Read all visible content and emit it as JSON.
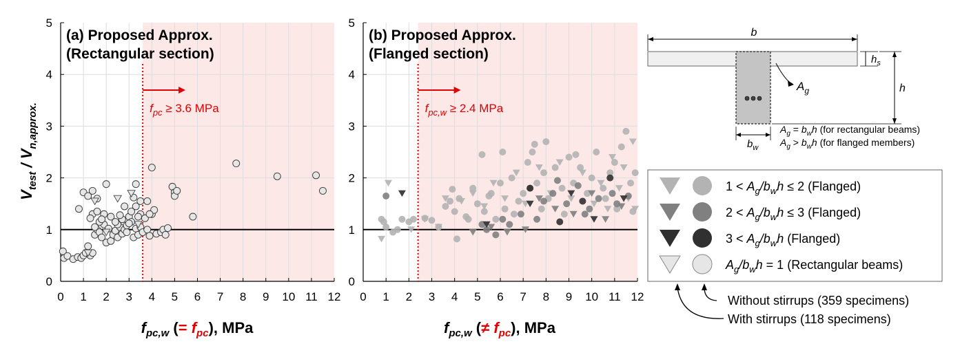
{
  "chart_data": [
    {
      "type": "scatter",
      "title_line1": "(a) Proposed Approx.",
      "title_line2": "(Rectangular section)",
      "xlim": [
        0,
        12
      ],
      "ylim": [
        0,
        5
      ],
      "xticks": [
        0,
        1,
        2,
        3,
        4,
        5,
        6,
        7,
        8,
        9,
        10,
        11,
        12
      ],
      "yticks": [
        0,
        1,
        2,
        3,
        4,
        5
      ],
      "ylabel": "Vtest / Vn,approx.",
      "xlabel_prefix": "fpc,w (",
      "xlabel_red": "= fpc",
      "xlabel_suffix": "), MPa",
      "threshold": {
        "x": 3.6,
        "label": "fpc ≥ 3.6 MPa"
      },
      "reference_line_y": 1,
      "series": [
        {
          "name": "Ag/bwh = 1 (Rectangular beams)",
          "marker": "circle",
          "color": "#e6e6e6",
          "points": [
            [
              0.1,
              0.58
            ],
            [
              0.15,
              0.45
            ],
            [
              0.3,
              0.49
            ],
            [
              0.55,
              0.43
            ],
            [
              0.75,
              0.47
            ],
            [
              0.9,
              0.45
            ],
            [
              1.0,
              0.5
            ],
            [
              1.1,
              0.55
            ],
            [
              1.2,
              0.68
            ],
            [
              1.3,
              0.5
            ],
            [
              1.4,
              0.55
            ],
            [
              1.5,
              0.9
            ],
            [
              1.6,
              1.0
            ],
            [
              1.7,
              0.95
            ],
            [
              1.8,
              0.85
            ],
            [
              1.9,
              1.1
            ],
            [
              2.0,
              0.75
            ],
            [
              2.1,
              1.02
            ],
            [
              2.2,
              0.78
            ],
            [
              2.3,
              0.9
            ],
            [
              2.4,
              0.98
            ],
            [
              2.5,
              0.85
            ],
            [
              2.6,
              1.05
            ],
            [
              2.7,
              0.92
            ],
            [
              2.8,
              1.0
            ],
            [
              2.9,
              0.95
            ],
            [
              3.0,
              1.25
            ],
            [
              3.1,
              1.15
            ],
            [
              3.2,
              0.85
            ],
            [
              3.3,
              1.02
            ],
            [
              3.4,
              0.9
            ],
            [
              3.5,
              1.05
            ],
            [
              3.6,
              0.95
            ],
            [
              1.5,
              1.05
            ],
            [
              1.7,
              1.15
            ],
            [
              1.9,
              1.3
            ],
            [
              2.2,
              1.25
            ],
            [
              2.5,
              1.1
            ],
            [
              2.7,
              1.2
            ],
            [
              2.9,
              1.08
            ],
            [
              3.1,
              1.35
            ],
            [
              3.2,
              1.62
            ],
            [
              3.3,
              1.45
            ],
            [
              3.5,
              1.3
            ],
            [
              0.8,
              1.4
            ],
            [
              1.0,
              1.72
            ],
            [
              1.2,
              1.65
            ],
            [
              1.4,
              1.75
            ],
            [
              1.6,
              1.6
            ],
            [
              2.0,
              1.88
            ],
            [
              2.8,
              1.45
            ],
            [
              3.3,
              1.88
            ],
            [
              3.5,
              1.55
            ],
            [
              1.4,
              1.3
            ],
            [
              1.3,
              1.22
            ],
            [
              1.6,
              1.35
            ],
            [
              1.8,
              1.2
            ],
            [
              2.4,
              1.15
            ],
            [
              2.6,
              1.28
            ],
            [
              3.0,
              1.12
            ],
            [
              3.4,
              1.25
            ],
            [
              3.7,
              1.22
            ],
            [
              3.8,
              1.0
            ],
            [
              3.9,
              0.88
            ],
            [
              4.0,
              1.3
            ],
            [
              4.1,
              1.38
            ],
            [
              4.2,
              0.92
            ],
            [
              4.4,
              0.95
            ],
            [
              4.5,
              1.0
            ],
            [
              4.6,
              0.9
            ],
            [
              4.7,
              1.03
            ],
            [
              3.9,
              1.3
            ],
            [
              4.0,
              2.2
            ],
            [
              3.8,
              1.55
            ],
            [
              4.9,
              1.83
            ],
            [
              5.0,
              1.72
            ],
            [
              5.0,
              1.65
            ],
            [
              5.1,
              1.75
            ],
            [
              5.8,
              1.25
            ],
            [
              7.7,
              2.28
            ],
            [
              9.5,
              2.03
            ],
            [
              11.2,
              2.05
            ],
            [
              11.5,
              1.75
            ]
          ]
        },
        {
          "name": "Ag/bwh = 1 (Rectangular beams)",
          "marker": "triangle",
          "color": "#e6e6e6",
          "points": [
            [
              1.5,
              1.55
            ],
            [
              3.1,
              1.7
            ],
            [
              2.5,
              1.6
            ],
            [
              1.2,
              0.55
            ],
            [
              3.4,
              1.1
            ],
            [
              2.0,
              0.95
            ]
          ]
        }
      ]
    },
    {
      "type": "scatter",
      "title_line1": "(b) Proposed Approx.",
      "title_line2": "(Flanged section)",
      "xlim": [
        0,
        12
      ],
      "ylim": [
        0,
        5
      ],
      "xticks": [
        0,
        1,
        2,
        3,
        4,
        5,
        6,
        7,
        8,
        9,
        10,
        11,
        12
      ],
      "yticks": [
        0,
        1,
        2,
        3,
        4,
        5
      ],
      "xlabel_prefix": "fpc,w (",
      "xlabel_red": "≠ fpc",
      "xlabel_suffix": "), MPa",
      "threshold": {
        "x": 2.4,
        "label": "fpc,w ≥ 2.4 MPa"
      },
      "reference_line_y": 1,
      "series": [
        {
          "name": "1 < Ag/bwh ≤ 2 (Flanged)",
          "marker": "circle",
          "color": "#b3b3b3",
          "points": [
            [
              0.8,
              1.2
            ],
            [
              0.9,
              1.15
            ],
            [
              1.0,
              1.05
            ],
            [
              1.3,
              0.95
            ],
            [
              1.5,
              1.0
            ],
            [
              1.7,
              1.2
            ],
            [
              2.0,
              1.15
            ],
            [
              2.2,
              1.2
            ],
            [
              2.7,
              1.22
            ],
            [
              3.0,
              1.18
            ],
            [
              3.3,
              1.05
            ],
            [
              3.6,
              1.45
            ],
            [
              3.8,
              1.55
            ],
            [
              4.0,
              1.35
            ],
            [
              4.2,
              1.6
            ],
            [
              4.5,
              1.25
            ],
            [
              4.8,
              1.8
            ],
            [
              5.0,
              1.5
            ],
            [
              5.3,
              1.35
            ],
            [
              5.5,
              1.65
            ],
            [
              5.8,
              1.2
            ],
            [
              6.0,
              1.9
            ],
            [
              6.2,
              1.4
            ],
            [
              6.5,
              2.0
            ],
            [
              6.8,
              1.55
            ],
            [
              7.0,
              1.7
            ],
            [
              7.2,
              2.3
            ],
            [
              7.4,
              2.5
            ],
            [
              7.6,
              1.9
            ],
            [
              7.9,
              2.1
            ],
            [
              8.1,
              1.6
            ],
            [
              8.4,
              2.2
            ],
            [
              8.7,
              1.8
            ],
            [
              9.0,
              2.4
            ],
            [
              9.2,
              1.9
            ],
            [
              9.5,
              2.2
            ],
            [
              9.8,
              1.7
            ],
            [
              10.0,
              2.0
            ],
            [
              10.2,
              2.5
            ],
            [
              10.5,
              1.8
            ],
            [
              10.8,
              2.1
            ],
            [
              11.0,
              2.3
            ],
            [
              11.3,
              2.6
            ],
            [
              11.5,
              2.9
            ],
            [
              11.7,
              1.9
            ],
            [
              11.9,
              2.1
            ],
            [
              4.1,
              0.82
            ],
            [
              5.2,
              2.45
            ],
            [
              6.1,
              2.5
            ],
            [
              7.5,
              2.65
            ],
            [
              8.0,
              2.7
            ],
            [
              9.3,
              2.45
            ],
            [
              3.9,
              1.78
            ],
            [
              4.6,
              1.2
            ],
            [
              5.6,
              1.7
            ],
            [
              6.6,
              1.3
            ],
            [
              7.8,
              1.4
            ],
            [
              8.8,
              1.3
            ],
            [
              10.6,
              1.6
            ],
            [
              11.1,
              1.4
            ],
            [
              11.8,
              1.35
            ]
          ]
        },
        {
          "name": "1 < Ag/bwh ≤ 2 (Flanged)",
          "marker": "triangle",
          "color": "#b3b3b3",
          "points": [
            [
              0.8,
              0.82
            ],
            [
              1.1,
              1.9
            ],
            [
              2.7,
              1.2
            ],
            [
              3.3,
              1.05
            ],
            [
              3.6,
              1.6
            ],
            [
              4.3,
              1.55
            ],
            [
              4.8,
              1.7
            ],
            [
              5.3,
              1.45
            ],
            [
              5.7,
              1.9
            ],
            [
              6.2,
              1.6
            ],
            [
              6.7,
              2.1
            ],
            [
              7.1,
              1.5
            ],
            [
              7.7,
              2.2
            ],
            [
              8.2,
              1.7
            ],
            [
              8.6,
              2.3
            ],
            [
              9.1,
              1.6
            ],
            [
              9.6,
              2.1
            ],
            [
              10.1,
              1.5
            ],
            [
              10.4,
              1.9
            ],
            [
              10.7,
              1.4
            ],
            [
              10.9,
              2.4
            ],
            [
              11.2,
              1.8
            ],
            [
              11.4,
              2.2
            ],
            [
              11.6,
              1.6
            ],
            [
              11.8,
              2.7
            ],
            [
              11.9,
              1.4
            ],
            [
              2.1,
              1.0
            ]
          ]
        },
        {
          "name": "2 < Ag/bwh ≤ 3 (Flanged)",
          "marker": "circle",
          "color": "#808080",
          "points": [
            [
              1.0,
              1.65
            ],
            [
              5.4,
              1.0
            ],
            [
              5.8,
              0.9
            ],
            [
              6.1,
              1.2
            ],
            [
              6.4,
              1.1
            ],
            [
              6.9,
              1.3
            ],
            [
              7.3,
              1.8
            ],
            [
              7.9,
              1.55
            ],
            [
              8.3,
              1.7
            ],
            [
              8.9,
              1.5
            ],
            [
              9.4,
              1.85
            ],
            [
              9.9,
              1.4
            ],
            [
              10.3,
              1.6
            ],
            [
              10.9,
              1.7
            ],
            [
              11.1,
              1.5
            ],
            [
              11.6,
              1.65
            ],
            [
              5.2,
              1.1
            ],
            [
              7.6,
              1.2
            ],
            [
              8.5,
              1.95
            ],
            [
              9.7,
              1.3
            ]
          ]
        },
        {
          "name": "2 < Ag/bwh ≤ 3 (Flanged)",
          "marker": "triangle",
          "color": "#808080",
          "points": [
            [
              4.8,
              0.95
            ],
            [
              5.6,
              1.05
            ],
            [
              6.3,
              0.95
            ],
            [
              7.1,
              1.0
            ],
            [
              7.7,
              1.6
            ],
            [
              8.4,
              1.4
            ],
            [
              9.2,
              1.3
            ],
            [
              10.0,
              1.7
            ],
            [
              10.6,
              1.2
            ],
            [
              11.3,
              1.45
            ]
          ]
        },
        {
          "name": "3 < Ag/bwh (Flanged)",
          "marker": "circle",
          "color": "#303030",
          "points": [
            [
              7.3,
              1.8
            ],
            [
              8.6,
              1.15
            ],
            [
              9.6,
              1.55
            ],
            [
              10.8,
              2.0
            ]
          ]
        },
        {
          "name": "3 < Ag/bwh (Flanged)",
          "marker": "triangle",
          "color": "#303030",
          "points": [
            [
              1.7,
              1.7
            ],
            [
              5.4,
              1.1
            ],
            [
              7.3,
              1.5
            ],
            [
              9.1,
              1.7
            ],
            [
              10.1,
              1.2
            ],
            [
              11.4,
              1.6
            ]
          ]
        }
      ]
    }
  ],
  "diagram": {
    "b": "b",
    "hs": "hs",
    "h": "h",
    "Ag": "Ag",
    "bw": "bw",
    "eq1": "Ag = bwh (for rectangular beams)",
    "eq2": "Ag > bwh (for flanged members)"
  },
  "legend": [
    {
      "label": "1 < Ag/bwh ≤ 2 (Flanged)",
      "color": "#b3b3b3"
    },
    {
      "label": "2 < Ag/bwh ≤ 3 (Flanged)",
      "color": "#808080"
    },
    {
      "label": "3 < Ag/bwh (Flanged)",
      "color": "#303030"
    },
    {
      "label": "Ag/bwh = 1 (Rectangular beams)",
      "color": "#e6e6e6"
    }
  ],
  "notes": {
    "without": "Without stirrups (359 specimens)",
    "with": "With stirrups (118 specimens)"
  },
  "colors": {
    "threshold": "#e00000",
    "shade": "#fde8e8",
    "grid": "#dddddd"
  }
}
